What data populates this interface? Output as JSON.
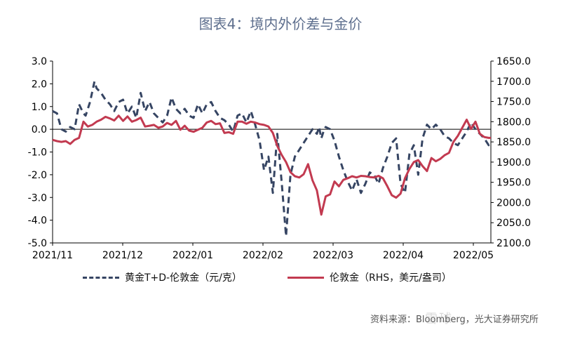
{
  "title": "图表4：境内外价差与金价",
  "source": "资料来源：Bloomberg，光大证券研究所",
  "watermark": "雪球 光大证券",
  "colors": {
    "premium": "#364563",
    "gold": "#c23a50",
    "axis": "#000000",
    "title": "#5e6f8e"
  },
  "chart_data": {
    "type": "line",
    "x_tick_labels": [
      "2021/11",
      "2021/12",
      "2022/01",
      "2022/02",
      "2022/03",
      "2022/04",
      "2022/05"
    ],
    "x_range": [
      "2021/11",
      "2022/05"
    ],
    "left_axis": {
      "ylim": [
        -5.0,
        3.0
      ],
      "ticks": [
        "3.0",
        "2.0",
        "1.0",
        "0.0",
        "-1.0",
        "-2.0",
        "-3.0",
        "-4.0",
        "-5.0"
      ]
    },
    "right_axis": {
      "ylim": [
        1650,
        2100
      ],
      "inverted": true,
      "ticks": [
        "1650.0",
        "1700.0",
        "1750.0",
        "1800.0",
        "1850.0",
        "1900.0",
        "1950.0",
        "2000.0",
        "2050.0",
        "2100.0"
      ]
    },
    "grid": false,
    "legend_position": "bottom",
    "series": [
      {
        "name": "黄金T+D-伦敦金（元/克）",
        "axis": "left",
        "style": "dashed",
        "x": [
          0,
          2,
          4,
          6,
          8,
          10,
          12,
          14,
          15,
          17,
          19,
          20,
          22,
          24,
          26,
          28,
          30,
          32,
          34,
          36,
          38,
          40,
          42,
          44,
          46,
          48,
          50,
          52,
          54,
          56,
          58,
          60,
          62,
          64,
          66,
          68,
          70,
          72,
          74,
          76,
          78,
          80,
          82,
          84,
          86,
          88,
          90,
          92,
          94,
          96,
          98,
          100,
          102,
          104,
          106,
          108,
          110,
          112,
          114,
          116,
          118,
          120,
          121,
          122,
          123,
          124,
          126,
          128,
          130,
          132,
          134,
          136,
          138,
          140,
          142,
          144,
          146,
          148,
          150,
          152,
          154,
          156,
          158,
          160,
          162,
          164,
          166,
          168,
          170,
          172,
          174,
          176,
          178,
          180,
          182,
          184,
          186,
          188,
          190,
          192,
          194,
          196,
          198,
          199
        ],
        "values": [
          0.8,
          0.7,
          0.0,
          -0.1,
          0.1,
          0.0,
          1.1,
          0.7,
          0.6,
          1.2,
          2.1,
          1.8,
          1.6,
          1.3,
          1.1,
          0.8,
          1.2,
          1.3,
          0.7,
          1.0,
          0.5,
          1.6,
          0.8,
          1.2,
          0.7,
          0.5,
          0.3,
          0.6,
          1.4,
          0.9,
          0.7,
          0.9,
          0.6,
          0.5,
          1.1,
          0.7,
          1.1,
          1.2,
          0.8,
          0.5,
          0.4,
          0.2,
          -0.1,
          0.6,
          0.7,
          0.3,
          0.8,
          0.2,
          -0.5,
          -1.8,
          -1.2,
          -2.8,
          -0.2,
          -2.3,
          -4.7,
          -2.0,
          -1.2,
          -0.9,
          -0.6,
          -0.3,
          0.0,
          -0.2,
          0.1,
          -0.4,
          -0.1,
          0.1,
          0.0,
          -0.5,
          -1.2,
          -1.8,
          -2.3,
          -2.7,
          -2.2,
          -2.8,
          -2.4,
          -1.9,
          -2.0,
          -2.4,
          -1.7,
          -1.2,
          -0.6,
          -0.4,
          -2.4,
          -2.8,
          -1.1,
          -0.7,
          -2.0,
          -0.4,
          0.2,
          0.0,
          0.2,
          0.0,
          -0.3,
          -0.4,
          -0.6,
          -0.7,
          -0.4,
          -0.1,
          0.3,
          0.0,
          -0.2,
          -0.4,
          -0.7,
          -0.6
        ]
      },
      {
        "name": "伦敦金（RHS，美元/盎司）",
        "axis": "right",
        "style": "solid",
        "x": [
          0,
          2,
          4,
          6,
          8,
          10,
          12,
          14,
          16,
          18,
          20,
          22,
          24,
          26,
          28,
          30,
          32,
          34,
          36,
          38,
          40,
          42,
          44,
          46,
          48,
          50,
          52,
          54,
          56,
          58,
          60,
          62,
          64,
          66,
          68,
          70,
          72,
          74,
          76,
          78,
          80,
          82,
          84,
          86,
          88,
          90,
          92,
          94,
          96,
          98,
          100,
          102,
          104,
          106,
          108,
          110,
          112,
          114,
          116,
          118,
          120,
          122,
          124,
          126,
          128,
          130,
          132,
          134,
          136,
          138,
          140,
          142,
          144,
          146,
          148,
          150,
          152,
          154,
          156,
          158,
          160,
          162,
          164,
          166,
          168,
          170,
          172,
          174,
          176,
          178,
          180,
          182,
          184,
          186,
          188,
          190,
          192,
          194,
          196,
          198,
          199
        ],
        "values": [
          1845,
          1848,
          1850,
          1848,
          1855,
          1845,
          1840,
          1800,
          1812,
          1808,
          1800,
          1795,
          1788,
          1792,
          1797,
          1785,
          1798,
          1787,
          1800,
          1796,
          1790,
          1812,
          1810,
          1808,
          1815,
          1812,
          1803,
          1808,
          1798,
          1820,
          1810,
          1822,
          1825,
          1820,
          1815,
          1802,
          1798,
          1806,
          1804,
          1828,
          1826,
          1830,
          1800,
          1800,
          1805,
          1800,
          1802,
          1806,
          1808,
          1812,
          1828,
          1860,
          1882,
          1900,
          1925,
          1935,
          1938,
          1930,
          1905,
          1945,
          1970,
          2030,
          1985,
          1980,
          1948,
          1960,
          1944,
          1940,
          1935,
          1938,
          1934,
          1935,
          1937,
          1938,
          1934,
          1940,
          1960,
          1982,
          1988,
          1978,
          1940,
          1917,
          1900,
          1895,
          1910,
          1922,
          1890,
          1898,
          1892,
          1883,
          1877,
          1850,
          1835,
          1815,
          1795,
          1818,
          1800,
          1830,
          1838,
          1840,
          1840
        ]
      }
    ]
  },
  "legend": {
    "premium_label": "黄金T+D-伦敦金（元/克）",
    "gold_label": "伦敦金（RHS，美元/盎司）"
  }
}
